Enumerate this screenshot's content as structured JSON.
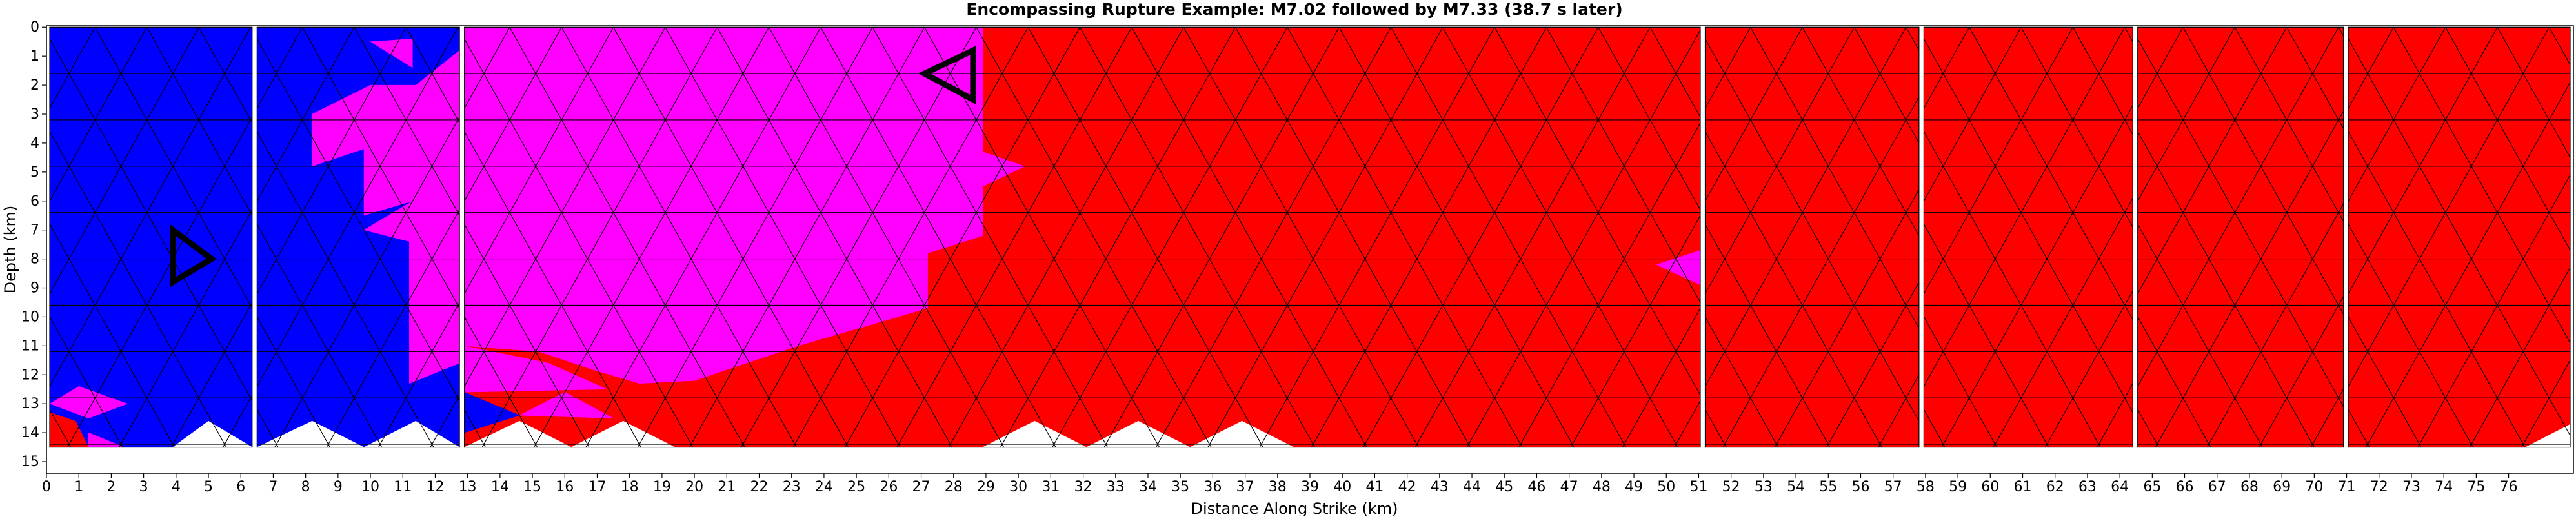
{
  "chart_data": {
    "type": "heatmap",
    "title": "Encompassing Rupture Example: M7.02 followed by M7.33 (38.7 s later)",
    "xlabel": "Distance Along Strike (km)",
    "ylabel": "Depth (km)",
    "xlim": [
      0,
      78
    ],
    "ylim": [
      15.4,
      -0.05
    ],
    "x_ticks": [
      0,
      1,
      2,
      3,
      4,
      5,
      6,
      7,
      8,
      9,
      10,
      11,
      12,
      13,
      14,
      15,
      16,
      17,
      18,
      19,
      20,
      21,
      22,
      23,
      24,
      25,
      26,
      27,
      28,
      29,
      30,
      31,
      32,
      33,
      34,
      35,
      36,
      37,
      38,
      39,
      40,
      41,
      42,
      43,
      44,
      45,
      46,
      47,
      48,
      49,
      50,
      51,
      52,
      53,
      54,
      55,
      56,
      57,
      58,
      59,
      60,
      61,
      62,
      63,
      64,
      65,
      66,
      67,
      68,
      69,
      70,
      71,
      72,
      73,
      74,
      75,
      76
    ],
    "y_ticks": [
      0,
      1,
      2,
      3,
      4,
      5,
      6,
      7,
      8,
      9,
      10,
      11,
      12,
      13,
      14,
      15
    ],
    "grid": false,
    "legend": "none",
    "mesh": {
      "triangle_height_km": 1.6,
      "triangle_width_km": 1.6,
      "bottom_depth_km": 14.5
    },
    "categories": [
      {
        "id": "first",
        "color": "#0000ff"
      },
      {
        "id": "both",
        "color": "#ff00ff"
      },
      {
        "id": "second",
        "color": "#ff0000"
      },
      {
        "id": "none",
        "color": "#ffffff"
      }
    ],
    "segments": [
      {
        "x0": 0.1,
        "x1": 6.35,
        "regions": [
          {
            "color": "#0000ff",
            "points": [
              [
                0.1,
                0
              ],
              [
                6.35,
                0
              ],
              [
                6.35,
                14.5
              ],
              [
                0.1,
                14.5
              ]
            ]
          },
          {
            "color": "#ff00ff",
            "points": [
              [
                0.1,
                13
              ],
              [
                1,
                12.4
              ],
              [
                2.5,
                13
              ],
              [
                1.3,
                13.5
              ]
            ]
          },
          {
            "color": "#ff0000",
            "points": [
              [
                0.1,
                13.3
              ],
              [
                0.9,
                13.6
              ],
              [
                1.3,
                14.5
              ],
              [
                0.1,
                14.5
              ]
            ]
          },
          {
            "color": "#ff00ff",
            "points": [
              [
                1.3,
                14
              ],
              [
                2.4,
                14.5
              ],
              [
                1.3,
                14.5
              ]
            ]
          },
          {
            "color": "#ffffff",
            "points": [
              [
                3.9,
                14.5
              ],
              [
                5.0,
                13.6
              ],
              [
                6.35,
                14.5
              ]
            ]
          }
        ]
      },
      {
        "x0": 6.5,
        "x1": 12.75,
        "regions": [
          {
            "color": "#0000ff",
            "points": [
              [
                6.5,
                0
              ],
              [
                12.75,
                0
              ],
              [
                12.75,
                14.5
              ],
              [
                6.5,
                14.5
              ]
            ]
          },
          {
            "color": "#ff00ff",
            "points": [
              [
                10.0,
                0.5
              ],
              [
                11.3,
                0.4
              ],
              [
                11.3,
                1.4
              ]
            ]
          },
          {
            "color": "#ff00ff",
            "points": [
              [
                12.75,
                0.8
              ],
              [
                11.4,
                2.0
              ],
              [
                10.0,
                2.0
              ],
              [
                8.2,
                3.0
              ],
              [
                8.2,
                4.8
              ],
              [
                9.8,
                4.2
              ],
              [
                9.8,
                6.5
              ],
              [
                11.3,
                6.0
              ],
              [
                9.8,
                7.0
              ],
              [
                11.2,
                7.4
              ],
              [
                11.2,
                12.3
              ],
              [
                12.75,
                11.6
              ]
            ]
          },
          {
            "color": "#ffffff",
            "points": [
              [
                6.5,
                14.5
              ],
              [
                8.2,
                13.6
              ],
              [
                9.8,
                14.5
              ],
              [
                11.4,
                13.6
              ],
              [
                12.75,
                14.5
              ]
            ]
          }
        ]
      },
      {
        "x0": 12.9,
        "x1": 51.05,
        "regions": [
          {
            "color": "#ff0000",
            "points": [
              [
                12.9,
                0
              ],
              [
                51.05,
                0
              ],
              [
                51.05,
                14.5
              ],
              [
                12.9,
                14.5
              ]
            ]
          },
          {
            "color": "#ff00ff",
            "points": [
              [
                12.9,
                0
              ],
              [
                28.9,
                0
              ],
              [
                28.9,
                4.3
              ],
              [
                30.2,
                4.8
              ],
              [
                28.9,
                5.5
              ],
              [
                28.9,
                7.2
              ],
              [
                27.2,
                7.8
              ],
              [
                27.2,
                9.7
              ],
              [
                23.2,
                11.0
              ],
              [
                21.6,
                11.6
              ],
              [
                20.0,
                12.2
              ],
              [
                18.3,
                12.3
              ],
              [
                16.8,
                11.8
              ],
              [
                15.2,
                11.2
              ],
              [
                12.9,
                11.0
              ]
            ]
          },
          {
            "color": "#ff00ff",
            "points": [
              [
                12.9,
                11.0
              ],
              [
                15.5,
                11.6
              ],
              [
                17.3,
                12.5
              ],
              [
                12.9,
                12.6
              ]
            ]
          },
          {
            "color": "#0000ff",
            "points": [
              [
                12.9,
                12.6
              ],
              [
                14.6,
                13.4
              ],
              [
                12.9,
                14.0
              ]
            ]
          },
          {
            "color": "#ff00ff",
            "points": [
              [
                14.6,
                13.4
              ],
              [
                16.0,
                12.6
              ],
              [
                17.5,
                13.5
              ]
            ]
          },
          {
            "color": "#ff00ff",
            "points": [
              [
                49.7,
                8.2
              ],
              [
                51.05,
                7.7
              ],
              [
                51.05,
                8.9
              ]
            ]
          },
          {
            "color": "#ffffff",
            "points": [
              [
                12.9,
                14.5
              ],
              [
                14.6,
                13.6
              ],
              [
                16.2,
                14.5
              ],
              [
                17.8,
                13.6
              ],
              [
                19.4,
                14.5
              ]
            ]
          },
          {
            "color": "#ffffff",
            "points": [
              [
                28.9,
                14.5
              ],
              [
                30.5,
                13.6
              ],
              [
                32.1,
                14.5
              ],
              [
                33.7,
                13.6
              ],
              [
                35.3,
                14.5
              ],
              [
                36.9,
                13.6
              ],
              [
                38.5,
                14.5
              ]
            ]
          }
        ]
      },
      {
        "x0": 51.2,
        "x1": 57.8,
        "regions": [
          {
            "color": "#ff0000",
            "points": [
              [
                51.2,
                0
              ],
              [
                57.8,
                0
              ],
              [
                57.8,
                14.5
              ],
              [
                51.2,
                14.5
              ]
            ]
          }
        ]
      },
      {
        "x0": 57.95,
        "x1": 64.4,
        "regions": [
          {
            "color": "#ff0000",
            "points": [
              [
                57.95,
                0
              ],
              [
                64.4,
                0
              ],
              [
                64.4,
                14.5
              ],
              [
                57.95,
                14.5
              ]
            ]
          }
        ]
      },
      {
        "x0": 64.55,
        "x1": 70.9,
        "regions": [
          {
            "color": "#ff0000",
            "points": [
              [
                64.55,
                0
              ],
              [
                70.9,
                0
              ],
              [
                70.9,
                14.5
              ],
              [
                64.55,
                14.5
              ]
            ]
          }
        ]
      },
      {
        "x0": 71.05,
        "x1": 77.9,
        "regions": [
          {
            "color": "#ff0000",
            "points": [
              [
                71.05,
                0
              ],
              [
                77.9,
                0
              ],
              [
                77.9,
                13.7
              ],
              [
                76.5,
                14.5
              ],
              [
                71.05,
                14.5
              ]
            ]
          }
        ]
      }
    ],
    "markers": [
      {
        "id": "hypocenter-1",
        "shape": "triangle-right",
        "points": [
          [
            3.9,
            7.0
          ],
          [
            3.9,
            8.8
          ],
          [
            5.1,
            8.0
          ]
        ]
      },
      {
        "id": "hypocenter-2",
        "shape": "triangle-left",
        "points": [
          [
            28.6,
            0.8
          ],
          [
            28.6,
            2.5
          ],
          [
            27.1,
            1.6
          ]
        ]
      }
    ]
  }
}
